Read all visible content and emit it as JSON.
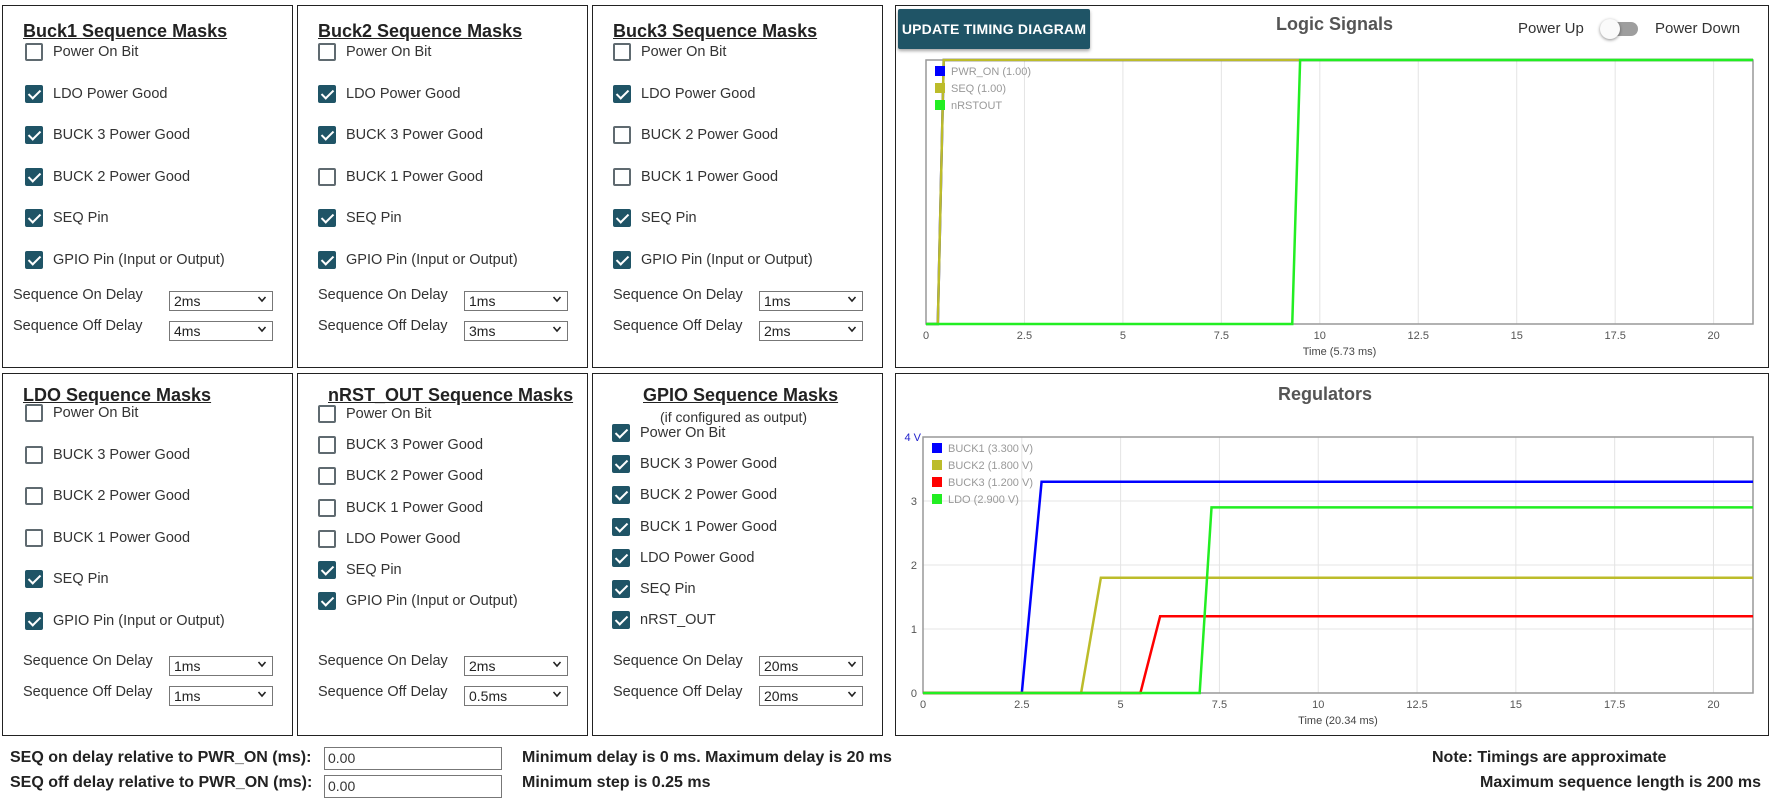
{
  "panels": {
    "buck1": {
      "title": "Buck1 Sequence Masks",
      "items": [
        {
          "label": "Power On Bit",
          "checked": false
        },
        {
          "label": "LDO Power Good",
          "checked": true
        },
        {
          "label": "BUCK 3 Power Good",
          "checked": true
        },
        {
          "label": "BUCK 2 Power Good",
          "checked": true
        },
        {
          "label": "SEQ Pin",
          "checked": true
        },
        {
          "label": "GPIO Pin (Input or Output)",
          "checked": true
        }
      ],
      "on_delay_label": "Sequence On Delay",
      "on_delay": "2ms",
      "off_delay_label": "Sequence Off Delay",
      "off_delay": "4ms"
    },
    "buck2": {
      "title": "Buck2 Sequence Masks",
      "items": [
        {
          "label": "Power On Bit",
          "checked": false
        },
        {
          "label": "LDO Power Good",
          "checked": true
        },
        {
          "label": "BUCK 3 Power Good",
          "checked": true
        },
        {
          "label": "BUCK 1 Power Good",
          "checked": false
        },
        {
          "label": "SEQ Pin",
          "checked": true
        },
        {
          "label": "GPIO Pin (Input or Output)",
          "checked": true
        }
      ],
      "on_delay_label": "Sequence On Delay",
      "on_delay": "1ms",
      "off_delay_label": "Sequence Off Delay",
      "off_delay": "3ms"
    },
    "buck3": {
      "title": "Buck3 Sequence Masks",
      "items": [
        {
          "label": "Power On Bit",
          "checked": false
        },
        {
          "label": "LDO Power Good",
          "checked": true
        },
        {
          "label": "BUCK 2 Power Good",
          "checked": false
        },
        {
          "label": "BUCK 1 Power Good",
          "checked": false
        },
        {
          "label": "SEQ Pin",
          "checked": true
        },
        {
          "label": "GPIO Pin (Input or Output)",
          "checked": true
        }
      ],
      "on_delay_label": "Sequence On Delay",
      "on_delay": "1ms",
      "off_delay_label": "Sequence Off Delay",
      "off_delay": "2ms"
    },
    "ldo": {
      "title": "LDO Sequence Masks",
      "items": [
        {
          "label": "Power On Bit",
          "checked": false
        },
        {
          "label": "BUCK 3 Power Good",
          "checked": false
        },
        {
          "label": "BUCK 2 Power Good",
          "checked": false
        },
        {
          "label": "BUCK 1 Power Good",
          "checked": false
        },
        {
          "label": "SEQ Pin",
          "checked": true
        },
        {
          "label": "GPIO Pin (Input or Output)",
          "checked": true
        }
      ],
      "on_delay_label": "Sequence On Delay",
      "on_delay": "1ms",
      "off_delay_label": "Sequence Off Delay",
      "off_delay": "1ms"
    },
    "nrst": {
      "title": "nRST_OUT Sequence Masks",
      "items": [
        {
          "label": "Power On Bit",
          "checked": false
        },
        {
          "label": "BUCK 3 Power Good",
          "checked": false
        },
        {
          "label": "BUCK 2 Power Good",
          "checked": false
        },
        {
          "label": "BUCK 1 Power Good",
          "checked": false
        },
        {
          "label": "LDO Power Good",
          "checked": false
        },
        {
          "label": "SEQ Pin",
          "checked": true
        },
        {
          "label": "GPIO Pin (Input or Output)",
          "checked": true
        }
      ],
      "on_delay_label": "Sequence On Delay",
      "on_delay": "2ms",
      "off_delay_label": "Sequence Off Delay",
      "off_delay": "0.5ms"
    },
    "gpio": {
      "title": "GPIO Sequence Masks",
      "subtitle": "(if configured as output)",
      "items": [
        {
          "label": "Power On Bit",
          "checked": true
        },
        {
          "label": "BUCK 3 Power Good",
          "checked": true
        },
        {
          "label": "BUCK 2 Power Good",
          "checked": true
        },
        {
          "label": "BUCK 1 Power Good",
          "checked": true
        },
        {
          "label": "LDO Power Good",
          "checked": true
        },
        {
          "label": "SEQ Pin",
          "checked": true
        },
        {
          "label": "nRST_OUT",
          "checked": true
        }
      ],
      "on_delay_label": "Sequence On Delay",
      "on_delay": "20ms",
      "off_delay_label": "Sequence Off Delay",
      "off_delay": "20ms"
    }
  },
  "header": {
    "update_button": "UPDATE TIMING DIAGRAM",
    "power_up_label": "Power Up",
    "power_down_label": "Power Down",
    "toggle_state": "power-up"
  },
  "bottom": {
    "seq_on_label": "SEQ on delay relative to PWR_ON (ms):",
    "seq_on_value": "0.00",
    "seq_off_label": "SEQ off delay relative to PWR_ON (ms):",
    "seq_off_value": "0.00",
    "min_max_note": "Minimum delay is 0 ms. Maximum delay is 20 ms",
    "min_step_note": "Minimum step is 0.25 ms",
    "approx_note": "Note: Timings are approximate",
    "max_length_note": "Maximum sequence length is 200 ms"
  },
  "colors": {
    "accent": "#1f5466",
    "pwr_on": "#0000ff",
    "seq": "#bcbc2a",
    "nrstout": "#22ee22",
    "buck1": "#0000ff",
    "buck2": "#bcbc2a",
    "buck3": "#ff0000",
    "ldo": "#22ee22"
  },
  "chart_data": [
    {
      "type": "line",
      "title": "Logic Signals",
      "xlabel": "Time (5.73 ms)",
      "ylabel": "",
      "xlim": [
        0,
        21
      ],
      "ylim": [
        0,
        1
      ],
      "x_ticks": [
        "0",
        "2.5",
        "5",
        "7.5",
        "10",
        "12.5",
        "15",
        "17.5",
        "20"
      ],
      "x_tick_values": [
        0,
        2.5,
        5,
        7.5,
        10,
        12.5,
        15,
        17.5,
        20
      ],
      "grid": true,
      "legend": "top-left",
      "series": [
        {
          "name": "PWR_ON (1.00)",
          "color": "#0000ff",
          "x": [
            0,
            0.3,
            0.45,
            21
          ],
          "y": [
            0,
            0,
            1,
            1
          ]
        },
        {
          "name": "SEQ (1.00)",
          "color": "#bcbc2a",
          "x": [
            0,
            0.3,
            0.45,
            21
          ],
          "y": [
            0,
            0,
            1,
            1
          ]
        },
        {
          "name": "nRSTOUT",
          "color": "#22ee22",
          "x": [
            0,
            9.3,
            9.5,
            21
          ],
          "y": [
            0,
            0,
            1,
            1
          ]
        }
      ]
    },
    {
      "type": "line",
      "title": "Regulators",
      "xlabel": "Time (20.34 ms)",
      "ylabel": "",
      "y_unit_label": "4 V",
      "xlim": [
        0,
        21
      ],
      "ylim": [
        0,
        4
      ],
      "x_ticks": [
        "0",
        "2.5",
        "5",
        "7.5",
        "10",
        "12.5",
        "15",
        "17.5",
        "20"
      ],
      "x_tick_values": [
        0,
        2.5,
        5,
        7.5,
        10,
        12.5,
        15,
        17.5,
        20
      ],
      "y_ticks": [
        "0",
        "1",
        "2",
        "3"
      ],
      "y_tick_values": [
        0,
        1,
        2,
        3
      ],
      "grid": true,
      "legend": "top-left",
      "series": [
        {
          "name": "BUCK1 (3.300 V)",
          "color": "#0000ff",
          "x": [
            0,
            2.5,
            3.0,
            21
          ],
          "y": [
            0,
            0,
            3.3,
            3.3
          ]
        },
        {
          "name": "BUCK2 (1.800 V)",
          "color": "#bcbc2a",
          "x": [
            0,
            4.0,
            4.5,
            21
          ],
          "y": [
            0,
            0,
            1.8,
            1.8
          ]
        },
        {
          "name": "BUCK3 (1.200 V)",
          "color": "#ff0000",
          "x": [
            0,
            5.5,
            6.0,
            21
          ],
          "y": [
            0,
            0,
            1.2,
            1.2
          ]
        },
        {
          "name": "LDO (2.900 V)",
          "color": "#22ee22",
          "x": [
            0,
            7.0,
            7.3,
            21
          ],
          "y": [
            0,
            0,
            2.9,
            2.9
          ]
        }
      ]
    }
  ]
}
